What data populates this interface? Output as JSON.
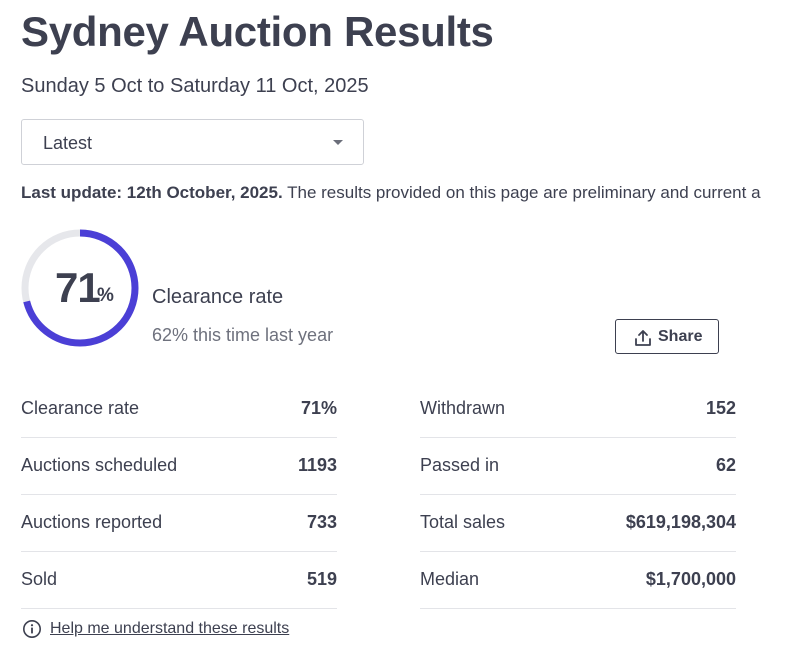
{
  "page": {
    "title": "Sydney Auction Results",
    "date_range": "Sunday 5 Oct to Saturday 11 Oct, 2025"
  },
  "period_select": {
    "selected": "Latest"
  },
  "update": {
    "bold": "Last update: 12th October, 2025.",
    "text": " The results provided on this page are preliminary and current a"
  },
  "clearance": {
    "value": "71",
    "unit": "%",
    "fraction": 0.71,
    "label": "Clearance rate",
    "last_year": "62% this time last year",
    "ring_color": "#4b3fd6",
    "track_color": "#e6e7eb"
  },
  "share": {
    "label": "Share"
  },
  "stats_left": [
    {
      "label": "Clearance rate",
      "value": "71%"
    },
    {
      "label": "Auctions scheduled",
      "value": "1193"
    },
    {
      "label": "Auctions reported",
      "value": "733"
    },
    {
      "label": "Sold",
      "value": "519"
    }
  ],
  "stats_right": [
    {
      "label": "Withdrawn",
      "value": "152"
    },
    {
      "label": "Passed in",
      "value": "62"
    },
    {
      "label": "Total sales",
      "value": "$619,198,304"
    },
    {
      "label": "Median",
      "value": "$1,700,000"
    }
  ],
  "help": {
    "label": "Help me understand these results"
  }
}
